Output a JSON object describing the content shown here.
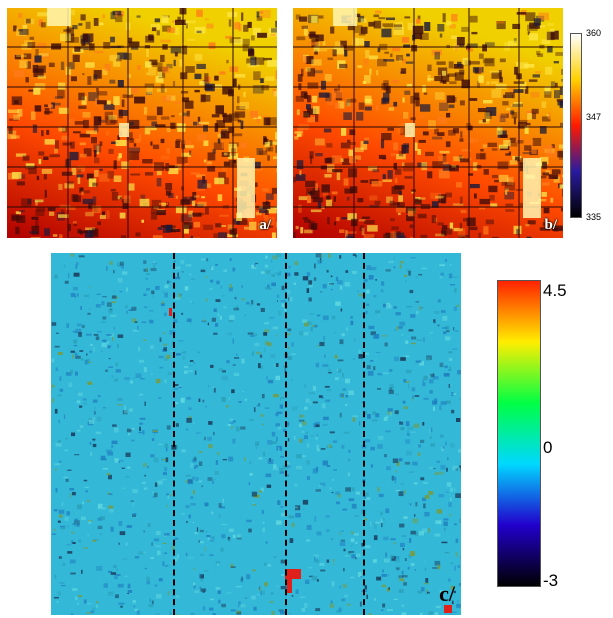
{
  "panels": [
    {
      "label": "a/"
    },
    {
      "label": "b/"
    },
    {
      "label": "c/"
    }
  ],
  "colorbar_top": {
    "ticks": [
      "360",
      "347",
      "335"
    ],
    "min": 335,
    "mid": 347,
    "max": 360,
    "colors": [
      "#000000",
      "#2a1aa0",
      "#ff1a00",
      "#ffd000",
      "#ffffff"
    ]
  },
  "colorbar_bottom": {
    "ticks": [
      "4.5",
      "0",
      "-3"
    ],
    "min": -3,
    "mid": 0,
    "max": 4.5,
    "colors": [
      "#000000",
      "#2200cc",
      "#00d8ff",
      "#00ff44",
      "#ffee00",
      "#ff2200"
    ]
  },
  "colors": {
    "elev_low": "#b00000",
    "elev_mid": "#ff4a00",
    "elev_high": "#f0d000",
    "diff_base": "#33b8d8",
    "dashed_line": "#000000"
  }
}
